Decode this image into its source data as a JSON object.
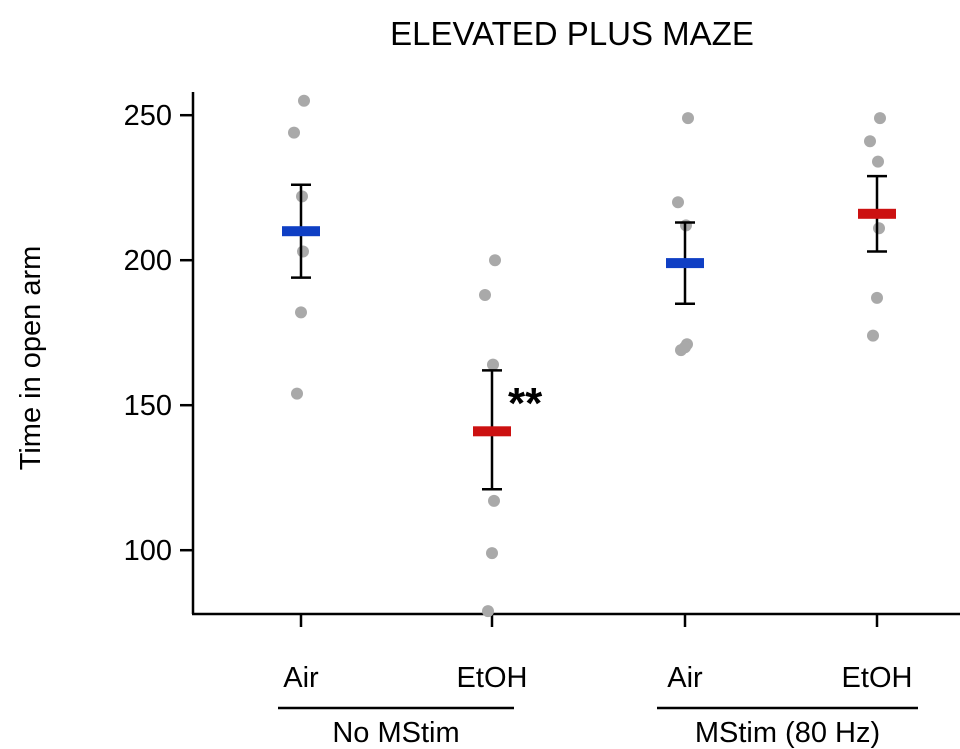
{
  "chart_data": {
    "type": "scatter",
    "title": "ELEVATED PLUS MAZE",
    "ylabel": "Time in open arm",
    "xlabel": "",
    "ylim": [
      78,
      258
    ],
    "y_ticks": [
      100,
      150,
      200,
      250
    ],
    "grid": false,
    "categories": [
      "Air",
      "EtOH",
      "Air",
      "EtOH"
    ],
    "groups": [
      {
        "label": "No MStim",
        "categories": [
          0,
          1
        ]
      },
      {
        "label": "MStim (80 Hz)",
        "categories": [
          2,
          3
        ]
      }
    ],
    "series": [
      {
        "category": "Air",
        "points": [
          255,
          244,
          222,
          203,
          182,
          154
        ],
        "mean": 210,
        "sem_low": 194,
        "sem_high": 226,
        "mean_color": "#0f3fc4"
      },
      {
        "category": "EtOH",
        "points": [
          200,
          188,
          164,
          117,
          99,
          79
        ],
        "mean": 141,
        "sem_low": 121,
        "sem_high": 162,
        "mean_color": "#cc1111"
      },
      {
        "category": "Air",
        "points": [
          249,
          220,
          212,
          171,
          170,
          169
        ],
        "mean": 199,
        "sem_low": 185,
        "sem_high": 213,
        "mean_color": "#0f3fc4"
      },
      {
        "category": "EtOH",
        "points": [
          249,
          241,
          234,
          211,
          187,
          174
        ],
        "mean": 216,
        "sem_low": 203,
        "sem_high": 229,
        "mean_color": "#cc1111"
      }
    ],
    "annotations": [
      {
        "text": "**",
        "category_index": 1
      }
    ],
    "point_color": "#a9a9a9"
  }
}
